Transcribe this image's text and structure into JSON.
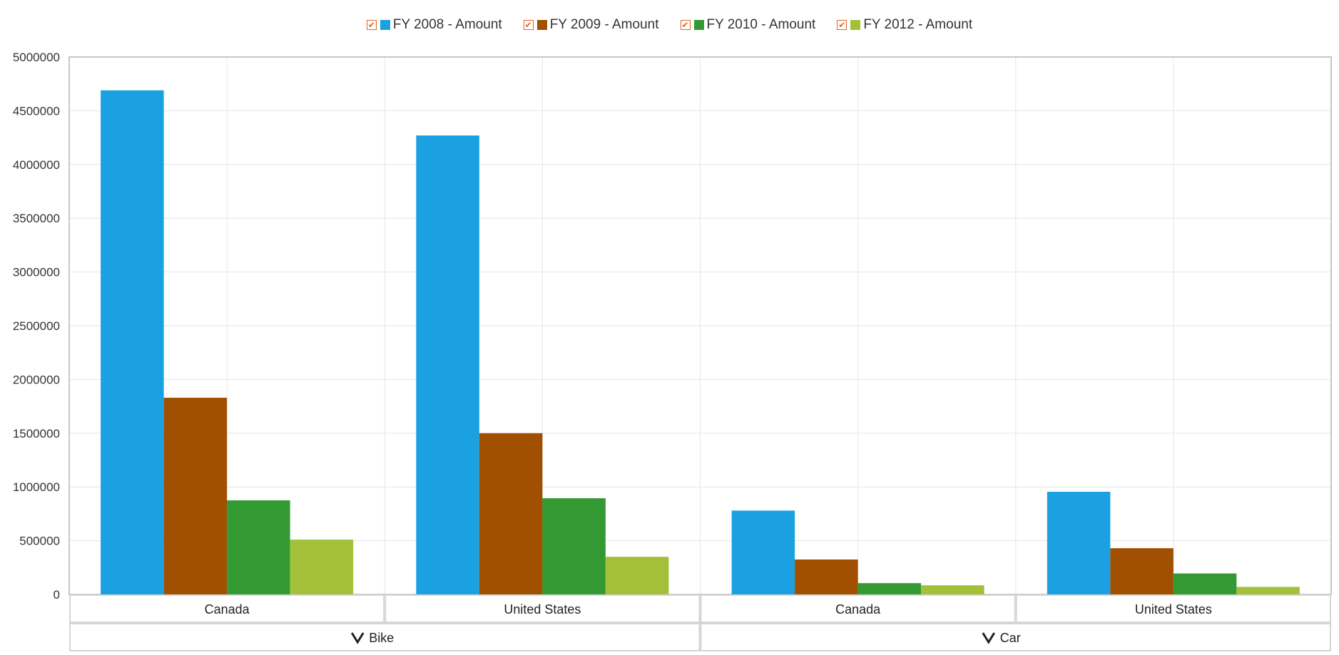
{
  "chart_data": {
    "type": "bar",
    "title": "",
    "xlabel": "",
    "ylabel": "",
    "ylim": [
      0,
      5000000
    ],
    "yticks": [
      0,
      500000,
      1000000,
      1500000,
      2000000,
      2500000,
      3000000,
      3500000,
      4000000,
      4500000,
      5000000
    ],
    "grid": true,
    "legend_position": "top-center",
    "groups": [
      {
        "label": "Bike",
        "categories": [
          "Canada",
          "United States"
        ]
      },
      {
        "label": "Car",
        "categories": [
          "Canada",
          "United States"
        ]
      }
    ],
    "categories": [
      "Canada",
      "United States",
      "Canada",
      "United States"
    ],
    "series": [
      {
        "name": "FY 2008 - Amount",
        "color": "#1ba1e2",
        "values": [
          4690000,
          4270000,
          780000,
          955000
        ]
      },
      {
        "name": "FY 2009 - Amount",
        "color": "#a05000",
        "values": [
          1830000,
          1500000,
          325000,
          430000
        ]
      },
      {
        "name": "FY 2010 - Amount",
        "color": "#339933",
        "values": [
          875000,
          895000,
          105000,
          195000
        ]
      },
      {
        "name": "FY 2012 - Amount",
        "color": "#a2c139",
        "values": [
          510000,
          350000,
          85000,
          70000
        ]
      }
    ]
  },
  "legend": {
    "checkbox_icon": "check-icon",
    "checkbox_color": "#e8621c"
  },
  "group_icon": "chevron-down-icon"
}
